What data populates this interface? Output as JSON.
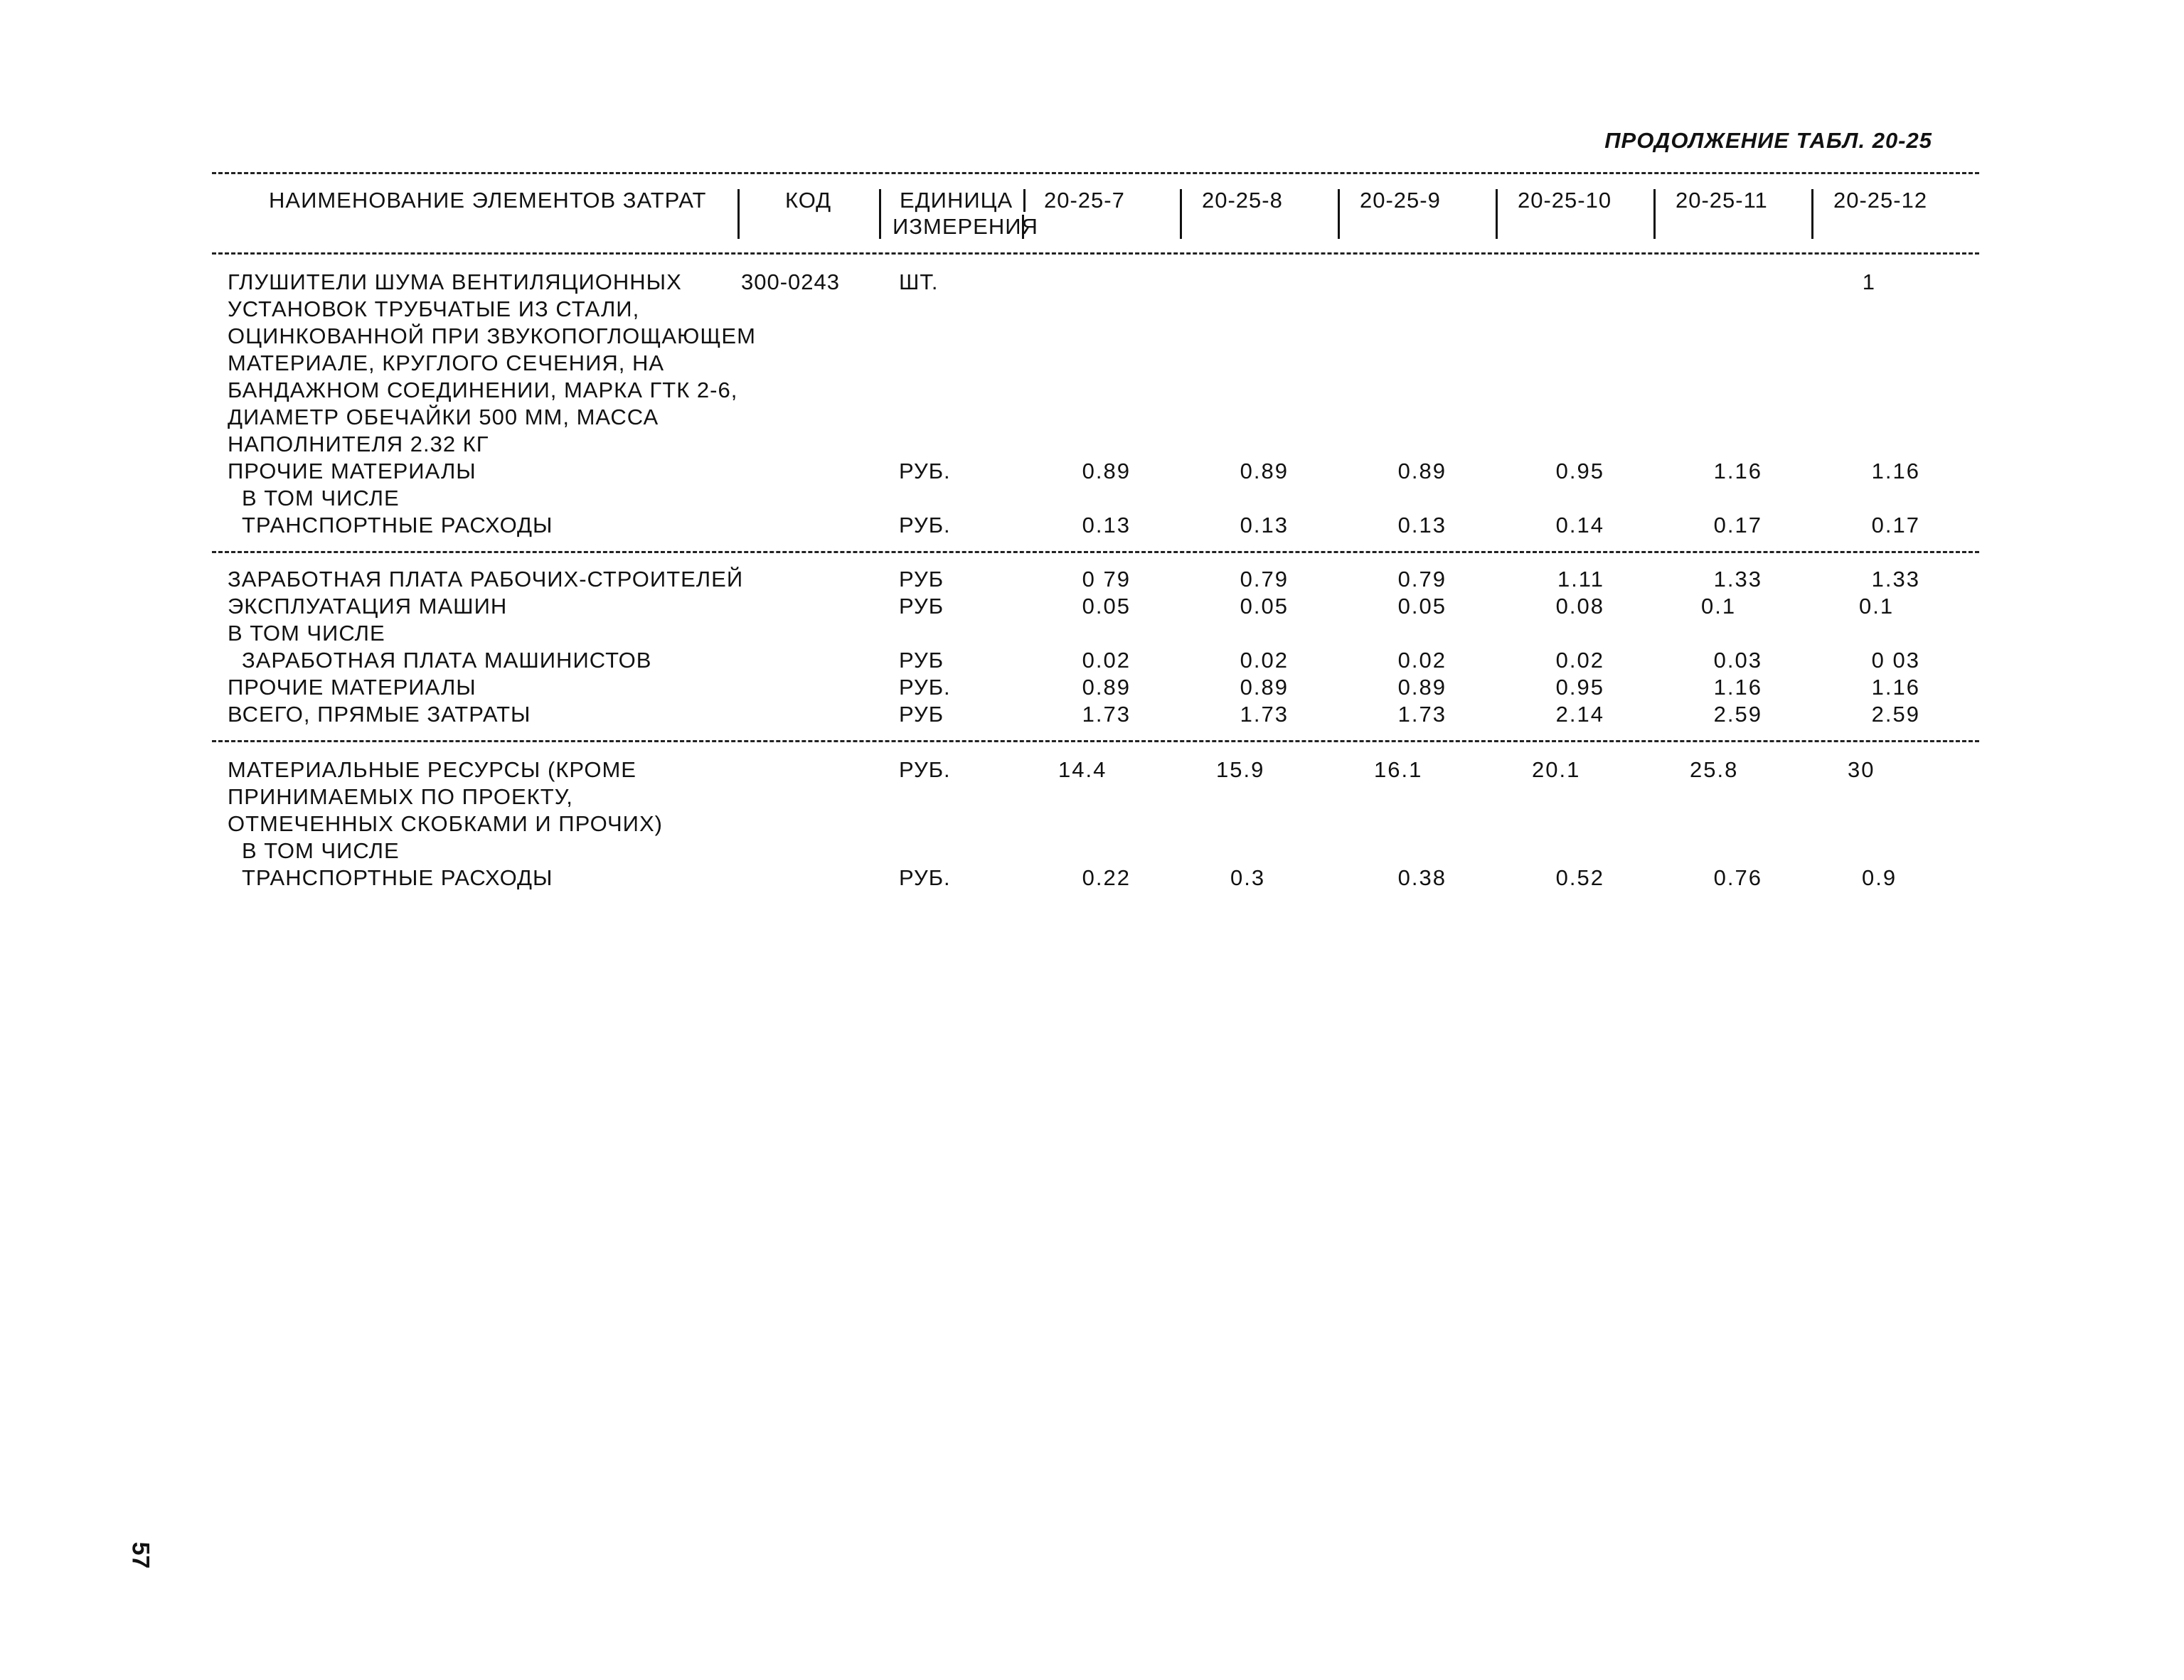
{
  "title": "ПРОДОЛЖЕНИЕ ТАБЛ. 20-25",
  "page_number": "57",
  "header": {
    "name": "НАИМЕНОВАНИЕ ЭЛЕМЕНТОВ ЗАТРАТ",
    "code": "КОД",
    "unit_line1": "ЕДИНИЦА",
    "unit_line2": "ИЗМЕРЕНИЯ",
    "cols": [
      "20-25-7",
      "20-25-8",
      "20-25-9",
      "20-25-10",
      "20-25-11",
      "20-25-12"
    ]
  },
  "section1": {
    "r1": {
      "name_lines": [
        "ГЛУШИТЕЛИ ШУМА ВЕНТИЛЯЦИОННЫХ",
        "УСТАНОВОК ТРУБЧАТЫЕ ИЗ СТАЛИ,",
        "ОЦИНКОВАННОЙ ПРИ ЗВУКОПОГЛОЩАЮЩЕМ",
        "МАТЕРИАЛЕ, КРУГЛОГО СЕЧЕНИЯ, НА",
        "БАНДАЖНОМ СОЕДИНЕНИИ, МАРКА ГТК 2-6,",
        "ДИАМЕТР ОБЕЧАЙКИ 500 ММ, МАССА",
        "НАПОЛНИТЕЛЯ 2.32 КГ"
      ],
      "code": "300-0243",
      "unit": "ШТ.",
      "v6": "1"
    },
    "r2": {
      "name": "ПРОЧИЕ МАТЕРИАЛЫ",
      "unit": "РУБ.",
      "values": [
        "0.89",
        "0.89",
        "0.89",
        "0.95",
        "1.16",
        "1.16"
      ]
    },
    "r3": {
      "name": "В ТОМ ЧИСЛЕ"
    },
    "r4": {
      "name": "ТРАНСПОРТНЫЕ РАСХОДЫ",
      "unit": "РУБ.",
      "values": [
        "0.13",
        "0.13",
        "0.13",
        "0.14",
        "0.17",
        "0.17"
      ]
    }
  },
  "section2": {
    "r1": {
      "name": "ЗАРАБОТНАЯ ПЛАТА РАБОЧИХ-СТРОИТЕЛЕЙ",
      "unit": "РУБ",
      "values": [
        "0 79",
        "0.79",
        "0.79",
        "1.11",
        "1.33",
        "1.33"
      ]
    },
    "r2": {
      "name": "ЭКСПЛУАТАЦИЯ МАШИН",
      "unit": "РУБ",
      "values": [
        "0.05",
        "0.05",
        "0.05",
        "0.08",
        "0.1",
        "0.1"
      ]
    },
    "r3": {
      "name": "В ТОМ ЧИСЛЕ"
    },
    "r4": {
      "name": "ЗАРАБОТНАЯ ПЛАТА МАШИНИСТОВ",
      "unit": "РУБ",
      "values": [
        "0.02",
        "0.02",
        "0.02",
        "0.02",
        "0.03",
        "0 03"
      ]
    },
    "r5": {
      "name": "ПРОЧИЕ МАТЕРИАЛЫ",
      "unit": "РУБ.",
      "values": [
        "0.89",
        "0.89",
        "0.89",
        "0.95",
        "1.16",
        "1.16"
      ]
    },
    "r6": {
      "name": "ВСЕГО, ПРЯМЫЕ ЗАТРАТЫ",
      "unit": "РУБ",
      "values": [
        "1.73",
        "1.73",
        "1.73",
        "2.14",
        "2.59",
        "2.59"
      ]
    }
  },
  "section3": {
    "r1": {
      "name_lines": [
        "МАТЕРИАЛЬНЫЕ РЕСУРСЫ (КРОМЕ",
        "ПРИНИМАЕМЫХ ПО ПРОЕКТУ,",
        "ОТМЕЧЕННЫХ СКОБКАМИ И ПРОЧИХ)"
      ],
      "unit": "РУБ.",
      "values": [
        "14.4",
        "15.9",
        "16.1",
        "20.1",
        "25.8",
        "30"
      ]
    },
    "r2": {
      "name": "В ТОМ ЧИСЛЕ"
    },
    "r3": {
      "name": "ТРАНСПОРТНЫЕ РАСХОДЫ",
      "unit": "РУБ.",
      "values": [
        "0.22",
        "0.3",
        "0.38",
        "0.52",
        "0.76",
        "0.9"
      ]
    }
  }
}
